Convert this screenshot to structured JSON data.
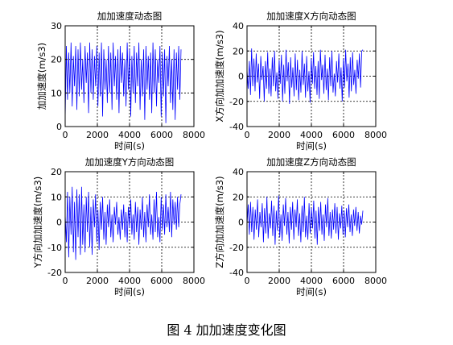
{
  "figure_caption": "图 4  加加速度变化图",
  "colors": {
    "line": "#0000ff",
    "axes": "#000000",
    "grid": "#000000"
  },
  "chart_data": [
    {
      "type": "line",
      "title": "加加速度动态图",
      "xlabel": "时间(s)",
      "ylabel": "加加速度(m/s3)",
      "xlim": [
        0,
        8000
      ],
      "ylim": [
        0,
        30
      ],
      "xticks": [
        0,
        2000,
        4000,
        6000,
        8000
      ],
      "yticks": [
        0,
        10,
        20,
        30
      ],
      "grid": true,
      "series": [
        {
          "values_note": "",
          "x_range": [
            0,
            7200
          ],
          "y": [
            2,
            24,
            8,
            22,
            10,
            25,
            6,
            21,
            12,
            24,
            5,
            23,
            9,
            25,
            11,
            20,
            7,
            24,
            13,
            22,
            4,
            25,
            10,
            23,
            8,
            21,
            12,
            24,
            6,
            22,
            9,
            25,
            3,
            23,
            11,
            20,
            7,
            24,
            10,
            22,
            5,
            25,
            12,
            21,
            8,
            23,
            4,
            24,
            13,
            22,
            9,
            20,
            6,
            25,
            11,
            23,
            3,
            21,
            10,
            24,
            7,
            22,
            12,
            25,
            5,
            20,
            9,
            23,
            2,
            24,
            11,
            21,
            8,
            22,
            4,
            25,
            10,
            23,
            6,
            20,
            13,
            24,
            3,
            22,
            9,
            23,
            1,
            21,
            12,
            24,
            7,
            20,
            5,
            23,
            2,
            22,
            11,
            24,
            8,
            23
          ]
        }
      ]
    },
    {
      "type": "line",
      "title": "加加速度X方向动态图",
      "xlabel": "时间(s)",
      "ylabel": "X方向加加速度(m/s3)",
      "xlim": [
        0,
        8000
      ],
      "ylim": [
        -40,
        40
      ],
      "xticks": [
        0,
        2000,
        4000,
        6000,
        8000
      ],
      "yticks": [
        -40,
        -20,
        0,
        20,
        40
      ],
      "grid": true,
      "series": [
        {
          "x_range": [
            0,
            7200
          ],
          "y": [
            5,
            -10,
            12,
            -15,
            22,
            -8,
            14,
            -12,
            18,
            -5,
            10,
            -18,
            16,
            -3,
            8,
            -20,
            12,
            -10,
            19,
            -14,
            6,
            -16,
            15,
            -8,
            20,
            -12,
            3,
            -18,
            13,
            -6,
            17,
            -20,
            9,
            -14,
            21,
            -4,
            11,
            -22,
            15,
            -9,
            7,
            -16,
            18,
            -11,
            13,
            -19,
            5,
            -13,
            20,
            -7,
            10,
            -17,
            16,
            -12,
            4,
            -21,
            14,
            -6,
            19,
            -10,
            8,
            -15,
            12,
            -18,
            21,
            -3,
            9,
            -14,
            17,
            -11,
            6,
            -19,
            15,
            -8,
            20,
            -13,
            2,
            -16,
            12,
            -5,
            18,
            -10,
            7,
            -20,
            14,
            -9,
            21,
            -4,
            10,
            -17,
            15,
            -12,
            19,
            -7,
            5,
            -14,
            13,
            -2,
            18,
            -9,
            20,
            21
          ]
        }
      ]
    },
    {
      "type": "line",
      "title": "加加速度Y方向动态图",
      "xlabel": "时间(s)",
      "ylabel": "Y方向加加速度(m/s3)",
      "xlim": [
        0,
        8000
      ],
      "ylim": [
        -20,
        20
      ],
      "xticks": [
        0,
        2000,
        4000,
        6000,
        8000
      ],
      "yticks": [
        -20,
        -10,
        0,
        10,
        20
      ],
      "grid": true,
      "series": [
        {
          "x_range": [
            0,
            7200
          ],
          "y": [
            3,
            -8,
            12,
            -14,
            10,
            -5,
            14,
            -12,
            8,
            -15,
            13,
            -6,
            11,
            -13,
            14,
            -9,
            7,
            -12,
            10,
            -4,
            12,
            -10,
            6,
            -13,
            9,
            -2,
            11,
            -8,
            5,
            -11,
            8,
            -3,
            10,
            -7,
            4,
            -9,
            7,
            -2,
            9,
            -6,
            3,
            -8,
            6,
            -1,
            8,
            -5,
            2,
            -7,
            5,
            -3,
            7,
            -6,
            4,
            -8,
            6,
            -2,
            9,
            -5,
            3,
            -7,
            8,
            -4,
            6,
            -9,
            5,
            -3,
            10,
            -6,
            4,
            -8,
            7,
            -2,
            11,
            -5,
            3,
            -7,
            9,
            -4,
            12,
            -6,
            2,
            -8,
            10,
            -3,
            7,
            -5,
            11,
            -2,
            6,
            -4,
            12,
            -6,
            9,
            -1,
            8,
            -3,
            10,
            -2,
            7,
            11
          ]
        }
      ]
    },
    {
      "type": "line",
      "title": "加加速度Z方向动态图",
      "xlabel": "时间(s)",
      "ylabel": "Z方向加加速度(m/s3)",
      "xlim": [
        0,
        8000
      ],
      "ylim": [
        -40,
        40
      ],
      "xticks": [
        0,
        2000,
        4000,
        6000,
        8000
      ],
      "yticks": [
        -40,
        -20,
        0,
        20,
        40
      ],
      "grid": true,
      "series": [
        {
          "x_range": [
            0,
            7200
          ],
          "y": [
            -2,
            14,
            -10,
            16,
            -8,
            12,
            -14,
            10,
            -6,
            18,
            -12,
            8,
            -4,
            15,
            -16,
            11,
            -9,
            20,
            -13,
            7,
            -5,
            17,
            -11,
            13,
            -18,
            9,
            -7,
            21,
            -12,
            6,
            -15,
            14,
            -3,
            19,
            -10,
            8,
            -17,
            12,
            -6,
            16,
            -14,
            10,
            -4,
            18,
            -11,
            7,
            -16,
            13,
            -8,
            20,
            -12,
            5,
            -14,
            15,
            -9,
            11,
            -5,
            17,
            -13,
            9,
            -18,
            12,
            -7,
            16,
            -10,
            6,
            -15,
            14,
            -4,
            19,
            -11,
            8,
            -13,
            10,
            -6,
            15,
            -9,
            12,
            -14,
            7,
            -5,
            13,
            -10,
            9,
            -12,
            11,
            -4,
            14,
            -8,
            6,
            -11,
            10,
            -3,
            12,
            -7,
            8,
            -9,
            5,
            -2,
            9
          ]
        }
      ]
    }
  ]
}
